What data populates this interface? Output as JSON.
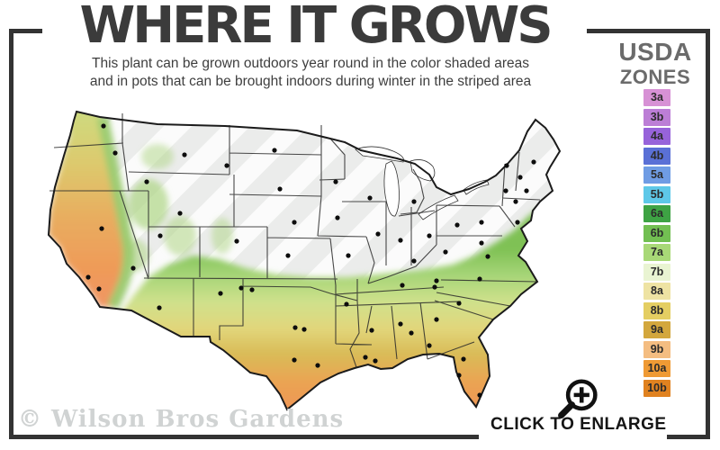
{
  "header": {
    "title": "WHERE IT GROWS",
    "subtitle_line1": "This plant can be grown outdoors year round in the color shaded areas",
    "subtitle_line2": "and in pots that can be brought indoors during winter in the striped area"
  },
  "legend": {
    "title_top": "USDA",
    "title_bottom": "ZONES",
    "zones": [
      {
        "label": "3a",
        "color": "#d791d5"
      },
      {
        "label": "3b",
        "color": "#bc7ed6"
      },
      {
        "label": "4a",
        "color": "#9763da"
      },
      {
        "label": "4b",
        "color": "#5a70d6"
      },
      {
        "label": "5a",
        "color": "#6f9ce4"
      },
      {
        "label": "5b",
        "color": "#5ec8e8"
      },
      {
        "label": "6a",
        "color": "#3ea344"
      },
      {
        "label": "6b",
        "color": "#72bf52"
      },
      {
        "label": "7a",
        "color": "#a8d877"
      },
      {
        "label": "7b",
        "color": "#e9f4d2"
      },
      {
        "label": "8a",
        "color": "#eee3a3"
      },
      {
        "label": "8b",
        "color": "#e4ce62"
      },
      {
        "label": "9a",
        "color": "#d3a73d"
      },
      {
        "label": "9b",
        "color": "#f4bd81"
      },
      {
        "label": "10a",
        "color": "#ef9a34"
      },
      {
        "label": "10b",
        "color": "#e08220"
      }
    ]
  },
  "map": {
    "region": "contiguous-united-states",
    "striped_base_color": "#ebeceb",
    "stripe_color": "#ffffff",
    "outline_color": "#1b1b1b",
    "city_dots": [
      [
        100,
        28
      ],
      [
        113,
        58
      ],
      [
        148,
        90
      ],
      [
        190,
        60
      ],
      [
        237,
        72
      ],
      [
        290,
        55
      ],
      [
        296,
        98
      ],
      [
        312,
        135
      ],
      [
        185,
        125
      ],
      [
        163,
        150
      ],
      [
        248,
        156
      ],
      [
        98,
        142
      ],
      [
        83,
        196
      ],
      [
        95,
        209
      ],
      [
        133,
        186
      ],
      [
        162,
        230
      ],
      [
        230,
        214
      ],
      [
        305,
        172
      ],
      [
        253,
        208
      ],
      [
        265,
        210
      ],
      [
        313,
        252
      ],
      [
        323,
        254
      ],
      [
        312,
        288
      ],
      [
        338,
        294
      ],
      [
        358,
        90
      ],
      [
        396,
        108
      ],
      [
        360,
        130
      ],
      [
        372,
        172
      ],
      [
        405,
        148
      ],
      [
        445,
        112
      ],
      [
        430,
        155
      ],
      [
        462,
        150
      ],
      [
        445,
        178
      ],
      [
        480,
        168
      ],
      [
        493,
        138
      ],
      [
        520,
        135
      ],
      [
        547,
        100
      ],
      [
        548,
        72
      ],
      [
        563,
        85
      ],
      [
        578,
        68
      ],
      [
        570,
        100
      ],
      [
        558,
        112
      ],
      [
        560,
        135
      ],
      [
        520,
        158
      ],
      [
        527,
        173
      ],
      [
        518,
        198
      ],
      [
        470,
        200
      ],
      [
        432,
        205
      ],
      [
        468,
        207
      ],
      [
        370,
        226
      ],
      [
        391,
        285
      ],
      [
        402,
        289
      ],
      [
        398,
        255
      ],
      [
        430,
        248
      ],
      [
        442,
        258
      ],
      [
        470,
        243
      ],
      [
        462,
        272
      ],
      [
        495,
        225
      ],
      [
        500,
        287
      ],
      [
        495,
        305
      ],
      [
        518,
        327
      ]
    ]
  },
  "watermark": {
    "text": "© Wilson Bros Gardens"
  },
  "enlarge": {
    "label": "CLICK TO ENLARGE",
    "icon": "magnifier-plus-icon"
  }
}
